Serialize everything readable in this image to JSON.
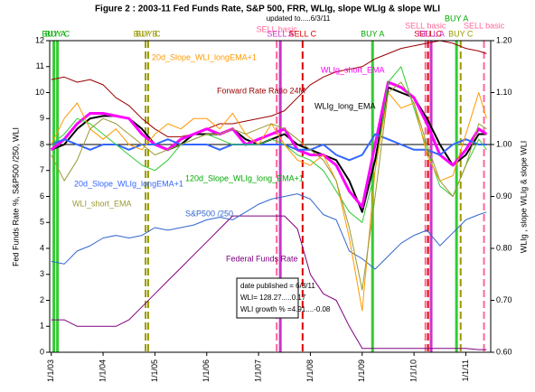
{
  "chart_data": {
    "type": "line",
    "title": "Figure 2 : 2003-11  Fed Funds Rate,  S&P 500,  FRR, WLIg,  slope WLIg  &  slope WLI",
    "subtitle": "updated to.....6/3/11",
    "y_label": "Fed Funds Rate %,   S&P500 /250,   WLI",
    "y2_label": "WLIg , slope WLIg  &  slope WLI",
    "grid": false,
    "xlim": [
      2002.97,
      2011.48
    ],
    "xticks": [
      {
        "value": 2003,
        "label": "1/1/03"
      },
      {
        "value": 2004,
        "label": "1/1/04"
      },
      {
        "value": 2005,
        "label": "1/1/05"
      },
      {
        "value": 2006,
        "label": "1/1/06"
      },
      {
        "value": 2007,
        "label": "1/1/07"
      },
      {
        "value": 2008,
        "label": "1/1/08"
      },
      {
        "value": 2009,
        "label": "1/1/09"
      },
      {
        "value": 2010,
        "label": "1/1/10"
      },
      {
        "value": 2011,
        "label": "1/1/11"
      }
    ],
    "ylim": [
      0,
      12
    ],
    "yticks": [
      0,
      1,
      2,
      3,
      4,
      5,
      6,
      7,
      8,
      9,
      10,
      11,
      12
    ],
    "y2lim": [
      0.6,
      1.2
    ],
    "y2ticks": [
      {
        "value": 0.6,
        "label": "0.60"
      },
      {
        "value": 0.7,
        "label": "0.70"
      },
      {
        "value": 0.8,
        "label": "0.80"
      },
      {
        "value": 0.9,
        "label": "0.90"
      },
      {
        "value": 1.0,
        "label": "1.00"
      },
      {
        "value": 1.1,
        "label": "1.10"
      },
      {
        "value": 1.2,
        "label": "1.20"
      }
    ],
    "hline_y2": 1.0,
    "x": [
      2003.0,
      2003.25,
      2003.5,
      2003.75,
      2004.0,
      2004.25,
      2004.5,
      2004.75,
      2005.0,
      2005.25,
      2005.5,
      2005.75,
      2006.0,
      2006.25,
      2006.5,
      2006.75,
      2007.0,
      2007.25,
      2007.5,
      2007.75,
      2008.0,
      2008.25,
      2008.5,
      2008.75,
      2009.0,
      2009.25,
      2009.5,
      2009.75,
      2010.0,
      2010.25,
      2010.5,
      2010.75,
      2011.0,
      2011.25,
      2011.4
    ],
    "series": [
      {
        "name": "Federal Funds Rate",
        "color": "#800080",
        "width": 1,
        "values": [
          1.25,
          1.25,
          1.0,
          1.0,
          1.0,
          1.0,
          1.25,
          1.75,
          2.25,
          2.75,
          3.25,
          3.75,
          4.25,
          4.75,
          5.25,
          5.25,
          5.25,
          5.25,
          5.25,
          4.75,
          3.0,
          2.25,
          2.0,
          1.0,
          0.15,
          0.15,
          0.15,
          0.15,
          0.15,
          0.15,
          0.15,
          0.15,
          0.15,
          0.1,
          0.1
        ]
      },
      {
        "name": "S&P500 /250",
        "color": "#3366cc",
        "width": 1,
        "values": [
          3.5,
          3.4,
          3.9,
          4.1,
          4.4,
          4.5,
          4.4,
          4.5,
          4.8,
          4.7,
          4.8,
          4.9,
          5.1,
          5.2,
          5.1,
          5.4,
          5.7,
          5.9,
          6.0,
          6.1,
          5.9,
          5.3,
          5.1,
          3.9,
          3.6,
          3.2,
          3.7,
          4.2,
          4.5,
          4.7,
          4.1,
          4.6,
          5.1,
          5.3,
          5.4
        ]
      },
      {
        "name": "Forward Rate Ratio 24M",
        "color": "#990000",
        "width": 1,
        "values": [
          10.5,
          10.6,
          10.4,
          10.5,
          10.3,
          9.8,
          9.5,
          9.0,
          8.6,
          8.3,
          8.3,
          8.4,
          8.6,
          8.8,
          8.8,
          8.9,
          9.0,
          9.1,
          9.3,
          9.8,
          10.3,
          10.6,
          10.8,
          10.9,
          11.0,
          11.3,
          11.5,
          11.7,
          11.8,
          11.9,
          12.0,
          11.9,
          11.7,
          11.6,
          11.5
        ]
      },
      {
        "name": "WLIg_long_EMA",
        "color": "#000000",
        "width": 2,
        "axis": "y2",
        "values": [
          0.99,
          1.0,
          1.03,
          1.05,
          1.055,
          1.055,
          1.05,
          1.03,
          1.0,
          0.99,
          1.0,
          1.02,
          1.02,
          1.02,
          1.03,
          1.01,
          1.0,
          1.01,
          1.02,
          1.0,
          0.99,
          0.98,
          0.97,
          0.93,
          0.87,
          0.97,
          1.11,
          1.1,
          1.09,
          1.05,
          1.0,
          0.96,
          0.98,
          1.02,
          1.02
        ]
      },
      {
        "name": "WLIg_short_EMA",
        "color": "#ff00ff",
        "width": 3,
        "axis": "y2",
        "values": [
          0.99,
          1.01,
          1.04,
          1.06,
          1.06,
          1.055,
          1.05,
          1.02,
          1.0,
          0.99,
          1.01,
          1.02,
          1.03,
          1.02,
          1.03,
          1.0,
          1.01,
          1.02,
          1.03,
          0.99,
          0.98,
          0.98,
          0.96,
          0.91,
          0.88,
          1.0,
          1.12,
          1.11,
          1.09,
          1.04,
          0.98,
          0.96,
          0.99,
          1.03,
          1.02
        ]
      },
      {
        "name": "20d_Slope_WLIg_longEMA+1",
        "color": "#3366ff",
        "width": 2,
        "axis": "y2",
        "values": [
          1.0,
          1.01,
          1.0,
          0.99,
          1.0,
          1.0,
          0.99,
          1.0,
          1.0,
          1.01,
          1.0,
          1.0,
          1.0,
          0.99,
          1.0,
          1.0,
          1.0,
          1.0,
          1.0,
          0.99,
          0.99,
          1.0,
          0.98,
          0.97,
          0.98,
          1.02,
          1.01,
          1.0,
          0.99,
          0.99,
          0.98,
          1.0,
          1.01,
          1.0,
          1.0
        ]
      },
      {
        "name": "120d_Slope_WLIg_long_EMA+1",
        "color": "#33cc33",
        "width": 1,
        "axis": "y2",
        "values": [
          1.0,
          1.02,
          1.05,
          1.04,
          1.02,
          1.0,
          0.98,
          0.96,
          0.95,
          0.97,
          1.0,
          1.01,
          1.02,
          1.01,
          1.0,
          1.0,
          1.0,
          1.01,
          1.0,
          0.98,
          0.97,
          0.95,
          0.91,
          0.87,
          0.85,
          0.95,
          1.12,
          1.15,
          1.07,
          0.99,
          0.92,
          0.9,
          0.96,
          1.01,
          0.99
        ]
      },
      {
        "name": "20d_Slope_WLI_longEMA+1",
        "color": "#ff9900",
        "width": 1,
        "axis": "y2",
        "values": [
          1.0,
          1.05,
          1.08,
          1.03,
          1.01,
          1.03,
          1.0,
          0.99,
          1.02,
          1.04,
          1.03,
          1.05,
          1.05,
          1.03,
          1.06,
          1.02,
          1.0,
          1.04,
          1.0,
          0.97,
          0.96,
          0.98,
          0.93,
          0.82,
          0.68,
          0.95,
          1.1,
          1.07,
          1.08,
          0.98,
          0.93,
          0.94,
          1.02,
          1.1,
          1.05
        ]
      },
      {
        "name": "WLI_short_EMA",
        "color": "#999933",
        "width": 1,
        "axis": "y2",
        "values": [
          0.98,
          0.93,
          0.97,
          1.03,
          1.05,
          1.04,
          1.02,
          1.0,
          0.98,
          0.99,
          1.0,
          1.01,
          1.02,
          1.02,
          1.03,
          1.02,
          1.03,
          1.04,
          1.03,
          1.01,
          0.99,
          0.97,
          0.93,
          0.84,
          0.72,
          0.9,
          1.1,
          1.12,
          1.08,
          1.0,
          0.93,
          0.9,
          0.96,
          1.04,
          1.03
        ]
      }
    ],
    "signals": [
      {
        "label": "BUY A",
        "x": 2003.05,
        "color": "#33cc33",
        "dash": false
      },
      {
        "label": "BUY C",
        "x": 2003.12,
        "color": "#33cc33",
        "dash": false
      },
      {
        "label": "BUY B",
        "x": 2004.82,
        "color": "#999900",
        "dash": true
      },
      {
        "label": "BUY C",
        "x": 2004.87,
        "color": "#999900",
        "dash": true
      },
      {
        "label": "SELL basic",
        "x": 2007.35,
        "color": "#ff6699",
        "dash": true
      },
      {
        "label": "SELL A",
        "x": 2007.42,
        "color": "#cc33cc",
        "dash": false
      },
      {
        "label": "SELL C",
        "x": 2007.85,
        "color": "#dd0000",
        "dash": true
      },
      {
        "label": "BUY A",
        "x": 2009.2,
        "color": "#33cc33",
        "dash": false
      },
      {
        "label": "SELL basic",
        "x": 2010.22,
        "color": "#ff6699",
        "dash": true
      },
      {
        "label": "SELL C",
        "x": 2010.27,
        "color": "#dd0000",
        "dash": true
      },
      {
        "label": "SELL A",
        "x": 2010.33,
        "color": "#cc33cc",
        "dash": false
      },
      {
        "label": "BUY A",
        "x": 2010.82,
        "color": "#33cc33",
        "dash": false
      },
      {
        "label": "BUY C",
        "x": 2010.9,
        "color": "#999900",
        "dash": true
      },
      {
        "label": "SELL basic",
        "x": 2011.35,
        "color": "#ff6699",
        "dash": true
      }
    ],
    "annotation": [
      "date published =   6/3/11",
      "WLI= 128.27.....0.17",
      "WLI growth % =4.91....-0.08"
    ]
  }
}
